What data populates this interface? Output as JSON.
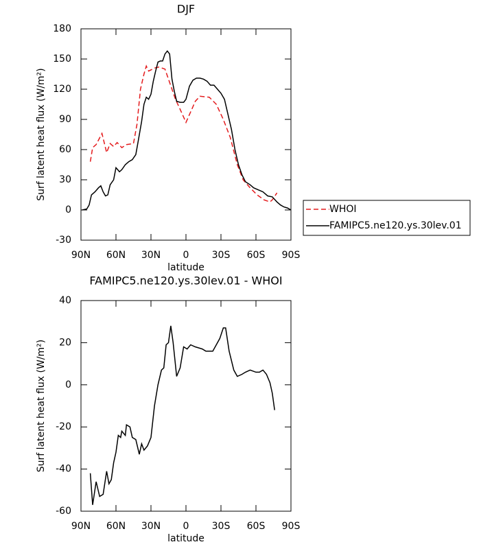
{
  "chart_data": [
    {
      "type": "line",
      "title": "DJF",
      "xlabel": "latitude",
      "ylabel": "Surf latent heat flux (W/m²)",
      "xlim": [
        90,
        -90
      ],
      "xticks": [
        {
          "value": 90,
          "label": "90N"
        },
        {
          "value": 60,
          "label": "60N"
        },
        {
          "value": 30,
          "label": "30N"
        },
        0,
        {
          "value": -30,
          "label": "30S"
        },
        {
          "value": -60,
          "label": "60S"
        },
        {
          "value": -90,
          "label": "90S"
        }
      ],
      "ylim": [
        -30,
        180
      ],
      "yticks": [
        -30,
        0,
        30,
        60,
        90,
        120,
        150,
        180
      ],
      "legend": "right",
      "series": [
        {
          "name": "WHOI",
          "color": "#e41a1c",
          "dash": true,
          "x": [
            82,
            80,
            77,
            72,
            68,
            65,
            62,
            59,
            55,
            51,
            45,
            42,
            39,
            36,
            34,
            32,
            27,
            23,
            18,
            15,
            9,
            5,
            0,
            -5,
            -8,
            -12,
            -20,
            -26,
            -32,
            -38,
            -44,
            -49,
            -55,
            -61,
            -67,
            -72,
            -74,
            -78
          ],
          "values": [
            48,
            62,
            65,
            76,
            57,
            66,
            63,
            67,
            62,
            65,
            66,
            85,
            120,
            135,
            143,
            138,
            141,
            142,
            140,
            130,
            110,
            100,
            87,
            100,
            108,
            113,
            112,
            105,
            90,
            72,
            45,
            30,
            22,
            15,
            10,
            8,
            10,
            17
          ]
        },
        {
          "name": "FAMIPC5.ne120.ys.30lev.01",
          "color": "#000000",
          "dash": false,
          "x": [
            89,
            85,
            83,
            81,
            78,
            75,
            73,
            71,
            69,
            67,
            65,
            62,
            60,
            57,
            55,
            52,
            49,
            46,
            43,
            41,
            38,
            36,
            34,
            32,
            30,
            28,
            26,
            24,
            22,
            20,
            18,
            16,
            14,
            12,
            10,
            8,
            5,
            2,
            0,
            -3,
            -6,
            -9,
            -12,
            -15,
            -18,
            -21,
            -24,
            -27,
            -30,
            -33,
            -36,
            -39,
            -42,
            -45,
            -48,
            -51,
            -55,
            -58,
            -62,
            -66,
            -70,
            -74,
            -78,
            -81,
            -84,
            -87,
            -90
          ],
          "values": [
            0,
            1,
            5,
            15,
            18,
            22,
            24,
            18,
            14,
            15,
            25,
            30,
            42,
            38,
            40,
            45,
            48,
            50,
            55,
            68,
            88,
            105,
            112,
            110,
            115,
            128,
            138,
            147,
            148,
            148,
            155,
            158,
            155,
            130,
            118,
            108,
            107,
            107,
            110,
            123,
            129,
            131,
            131,
            130,
            128,
            124,
            124,
            120,
            116,
            110,
            95,
            80,
            60,
            45,
            35,
            28,
            25,
            22,
            20,
            18,
            14,
            13,
            8,
            5,
            3,
            2,
            0
          ]
        }
      ]
    },
    {
      "type": "line",
      "title": "FAMIPC5.ne120.ys.30lev.01 - WHOI",
      "xlabel": "latitude",
      "ylabel": "Surf latent heat flux (W/m²)",
      "xlim": [
        90,
        -90
      ],
      "xticks": [
        {
          "value": 90,
          "label": "90N"
        },
        {
          "value": 60,
          "label": "60N"
        },
        {
          "value": 30,
          "label": "30N"
        },
        0,
        {
          "value": -30,
          "label": "30S"
        },
        {
          "value": -60,
          "label": "60S"
        },
        {
          "value": -90,
          "label": "90S"
        }
      ],
      "ylim": [
        -60,
        40
      ],
      "yticks": [
        -60,
        -40,
        -20,
        0,
        20,
        40
      ],
      "series": [
        {
          "color": "#000000",
          "dash": false,
          "x": [
            82,
            80,
            77,
            74,
            71,
            68,
            66,
            64,
            62,
            60,
            58,
            56,
            55,
            52,
            51,
            48,
            46,
            43,
            40,
            38,
            36,
            33,
            30,
            27,
            24,
            21,
            19,
            17,
            15,
            13,
            11,
            8,
            5,
            2,
            -1,
            -4,
            -8,
            -14,
            -17,
            -23,
            -26,
            -29,
            -32,
            -34,
            -37,
            -41,
            -44,
            -48,
            -51,
            -55,
            -60,
            -63,
            -66,
            -69,
            -72,
            -74,
            -76
          ],
          "values": [
            -42,
            -57,
            -46,
            -53,
            -52,
            -41,
            -47,
            -45,
            -37,
            -32,
            -24,
            -25,
            -22,
            -24,
            -19,
            -20,
            -25,
            -26,
            -33,
            -28,
            -31,
            -29,
            -25,
            -10,
            0,
            7,
            8,
            19,
            20,
            28,
            20,
            4,
            8,
            18,
            17,
            19,
            18,
            17,
            16,
            16,
            19,
            22,
            27,
            27,
            16,
            7,
            4,
            5,
            6,
            7,
            6,
            6,
            7,
            5,
            1,
            -4,
            -12
          ]
        }
      ]
    }
  ]
}
